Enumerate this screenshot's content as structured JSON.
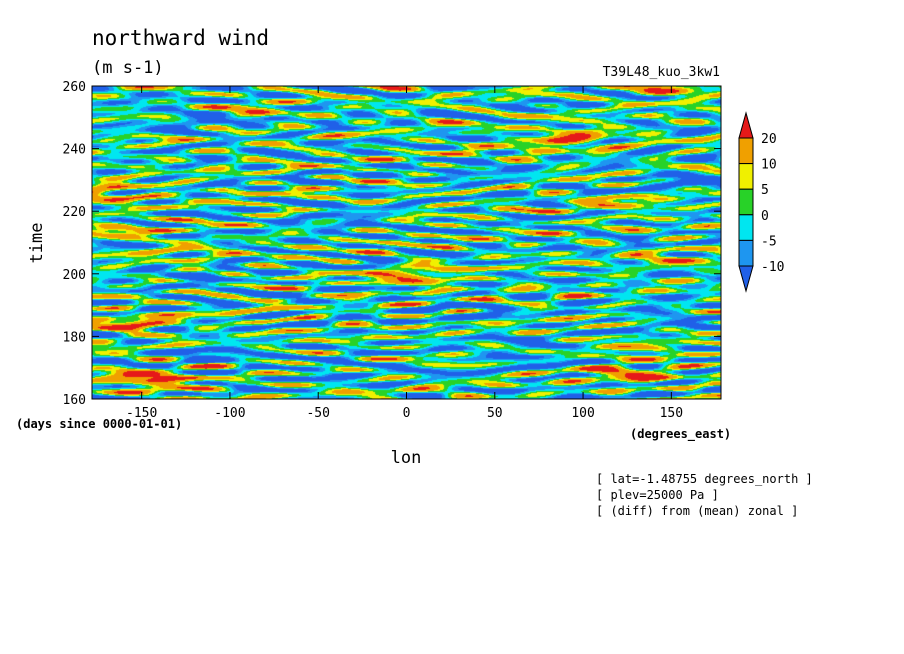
{
  "chart_data": {
    "type": "heatmap",
    "title": "northward wind",
    "units": "(m s-1)",
    "run_label": "T39L48_kuo_3kw1",
    "xlabel": "lon",
    "xunits": "(degrees_east)",
    "ylabel": "time",
    "yunits": "(days since 0000-01-01)",
    "xlim": [
      -178.125,
      178.125
    ],
    "ylim": [
      160,
      260
    ],
    "xticks": [
      {
        "value": -150,
        "label": "-150"
      },
      {
        "value": -100,
        "label": "-100"
      },
      {
        "value": -50,
        "label": "-50"
      },
      {
        "value": 0,
        "label": "0"
      },
      {
        "value": 50,
        "label": "50"
      },
      {
        "value": 100,
        "label": "100"
      },
      {
        "value": 150,
        "label": "150"
      }
    ],
    "yticks": [
      {
        "value": 160,
        "label": "160"
      },
      {
        "value": 180,
        "label": "180"
      },
      {
        "value": 200,
        "label": "200"
      },
      {
        "value": 220,
        "label": "220"
      },
      {
        "value": 240,
        "label": "240"
      },
      {
        "value": 260,
        "label": "260"
      }
    ],
    "colorbar": {
      "levels": [
        {
          "value": 20,
          "label": "20"
        },
        {
          "value": 10,
          "label": "10"
        },
        {
          "value": 5,
          "label": "5"
        },
        {
          "value": 0,
          "label": "0"
        },
        {
          "value": -5,
          "label": "-5"
        },
        {
          "value": -10,
          "label": "-10"
        }
      ],
      "colors": [
        "#2060e8",
        "#1e96f0",
        "#00e6f0",
        "#28d228",
        "#f0f000",
        "#f0a000",
        "#e61919"
      ],
      "extend": "both"
    },
    "field_colors": {
      "lt_-10": "#2060e8",
      "-10_-5": "#1e96f0",
      "-5_0": "#00e6f0",
      "0_5": "#28d228",
      "5_10": "#f0f000",
      "10_20": "#f0a000",
      "gt_20": "#e61919"
    },
    "features": [
      {
        "lon": -150,
        "time": 167,
        "value": 22
      },
      {
        "lon": -155,
        "time": 184,
        "value": 21
      },
      {
        "lon": -170,
        "time": 226,
        "value": 21
      },
      {
        "lon": 5,
        "time": 199,
        "value": 21
      },
      {
        "lon": 95,
        "time": 244,
        "value": 21
      },
      {
        "lon": 125,
        "time": 168,
        "value": 21
      },
      {
        "lon": 150,
        "time": 259,
        "value": 21
      },
      {
        "lon": -135,
        "time": 164,
        "value": 13
      },
      {
        "lon": -165,
        "time": 215,
        "value": 12
      },
      {
        "lon": 120,
        "time": 222,
        "value": 12
      },
      {
        "lon": 150,
        "time": 205,
        "value": 11
      },
      {
        "lon": 130,
        "time": 175,
        "value": 12
      },
      {
        "lon": -90,
        "time": 252,
        "value": 11
      },
      {
        "lon": -130,
        "time": 208,
        "value": 9
      },
      {
        "lon": 70,
        "time": 240,
        "value": 8
      },
      {
        "lon": -120,
        "time": 250,
        "value": -12
      },
      {
        "lon": 160,
        "time": 230,
        "value": -12
      },
      {
        "lon": -120,
        "time": 198,
        "value": -11
      },
      {
        "lon": -40,
        "time": 218,
        "value": -11
      },
      {
        "lon": 40,
        "time": 232,
        "value": -10
      },
      {
        "lon": 70,
        "time": 175,
        "value": -11
      },
      {
        "lon": -110,
        "time": 175,
        "value": -11
      },
      {
        "lon": 30,
        "time": 188,
        "value": -9
      },
      {
        "lon": 150,
        "time": 187,
        "value": -10
      },
      {
        "lon": -40,
        "time": 170,
        "value": -8
      }
    ],
    "annotations": [
      "[ lat=-1.48755 degrees_north ]",
      "[ plev=25000 Pa ]",
      "[ (diff) from (mean) zonal ]"
    ],
    "grid": false
  }
}
